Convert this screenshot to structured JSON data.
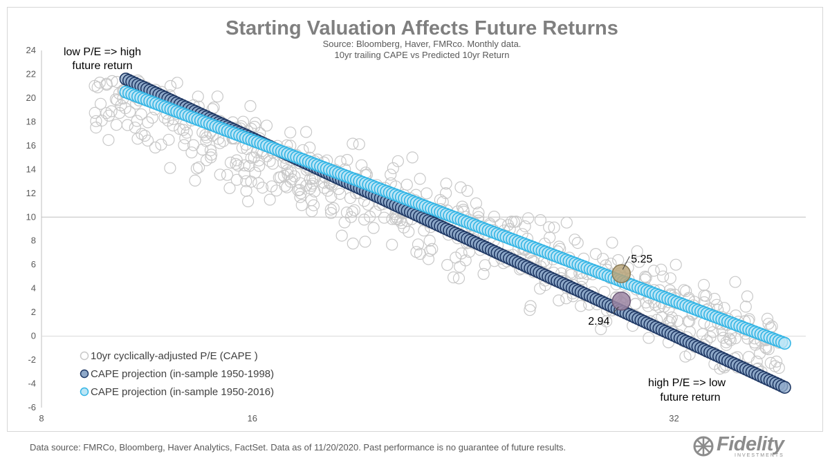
{
  "chart_data": {
    "type": "scatter",
    "title": "Starting Valuation Affects Future Returns",
    "subtitle_lines": [
      "Source: Bloomberg, Haver, FMRco. Monthly data.",
      "10yr trailing CAPE vs Predicted 10yr Return"
    ],
    "xlim": [
      8,
      37
    ],
    "ylim": [
      -6,
      24
    ],
    "x_ticks": [
      8,
      16,
      32
    ],
    "y_ticks": [
      24,
      22,
      20,
      18,
      16,
      14,
      12,
      10,
      8,
      6,
      4,
      2,
      0,
      -2,
      -4,
      -6
    ],
    "x_line_at": 0,
    "y_line_at": 10,
    "legend": [
      {
        "label": "10yr cyclically-adjusted P/E (CAPE )",
        "color": "#c8c8c8"
      },
      {
        "label": "CAPE projection (in-sample 1950-1998)",
        "color": "#1f3864"
      },
      {
        "label": "CAPE projection (in-sample 1950-2016)",
        "color": "#33b5e5"
      }
    ],
    "series": [
      {
        "name": "10yr cyclically-adjusted P/E (CAPE )",
        "kind": "scatter",
        "color": "#c8c8c8",
        "x_range": [
          10,
          36
        ],
        "trend": {
          "intercept": 28.5,
          "slope": -0.82
        },
        "spread": 2.5,
        "count": 650
      },
      {
        "name": "CAPE projection (in-sample 1950-1998)",
        "kind": "line",
        "color": "#1f3864",
        "fill": "#8fa9c9",
        "x_range": [
          11.2,
          36.2
        ],
        "y_range": [
          21.6,
          -4.3
        ]
      },
      {
        "name": "CAPE projection (in-sample 1950-2016)",
        "kind": "line",
        "color": "#33b5e5",
        "fill": "#bde6f6",
        "x_range": [
          11.2,
          36.2
        ],
        "y_range": [
          20.5,
          -0.6
        ]
      }
    ],
    "highlights": [
      {
        "label": "5.25",
        "x": 30,
        "y": 5.25,
        "color": "#b8a57a"
      },
      {
        "label": "2.94",
        "x": 30,
        "y": 2.94,
        "color": "#9c86a3"
      }
    ],
    "annotations": {
      "top_left": [
        "low P/E => high",
        "future return"
      ],
      "bottom_right": [
        "high P/E => low",
        "future return"
      ]
    }
  },
  "footer": "Data source: FMRCo, Bloomberg, Haver Analytics, FactSet. Data as of 11/20/2020. Past performance is no guarantee of future results.",
  "logo": {
    "word": "Fidelity",
    "sub": "INVESTMENTS"
  }
}
